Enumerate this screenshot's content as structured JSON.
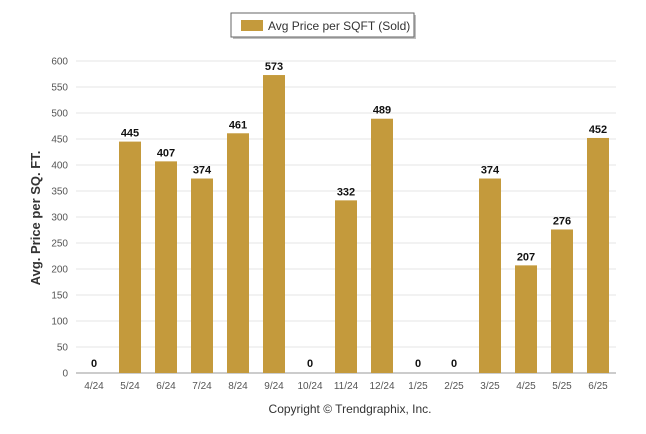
{
  "chart_data": {
    "type": "bar",
    "categories": [
      "4/24",
      "5/24",
      "6/24",
      "7/24",
      "8/24",
      "9/24",
      "10/24",
      "11/24",
      "12/24",
      "1/25",
      "2/25",
      "3/25",
      "4/25",
      "5/25",
      "6/25"
    ],
    "series": [
      {
        "name": "Avg Price per SQFT (Sold)",
        "values": [
          0,
          445,
          407,
          374,
          461,
          573,
          0,
          332,
          489,
          0,
          0,
          374,
          207,
          276,
          452
        ],
        "color": "#c49a3c"
      }
    ],
    "value_labels": [
      "0",
      "445",
      "407",
      "374",
      "461",
      "573",
      "0",
      "332",
      "489",
      "0",
      "0",
      "374",
      "207",
      "276",
      "452"
    ],
    "ylabel": "Avg. Price per SQ. FT.",
    "xlabel": "",
    "ylim": [
      0,
      600
    ],
    "yticks": [
      0,
      50,
      100,
      150,
      200,
      250,
      300,
      350,
      400,
      450,
      500,
      550,
      600
    ],
    "ytick_labels": [
      "0",
      "50",
      "100",
      "150",
      "200",
      "250",
      "300",
      "350",
      "400",
      "450",
      "500",
      "550",
      "600"
    ],
    "grid": true,
    "legend_position": "top-center"
  },
  "footer": {
    "copyright": "Copyright © Trendgraphix, Inc."
  }
}
